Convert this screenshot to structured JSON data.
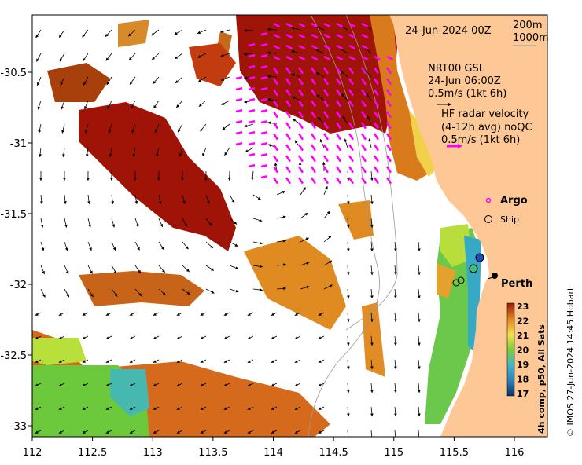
{
  "map": {
    "date_label": "24-Jun-2024 00Z",
    "isobath_200": "200m",
    "isobath_1000": "1000m",
    "model_label_line1": "NRT00 GSL",
    "model_label_line2": "24-Jun 06:00Z",
    "model_scale_label": "0.5m/s (1kt 6h)",
    "radar_label_line1": "HF radar velocity",
    "radar_label_line2": "(4-12h avg) noQC",
    "radar_scale_label": "0.5m/s (1kt 6h)",
    "argo_label": "Argo",
    "ship_label": "Ship",
    "city_label": "Perth",
    "colorbar_title": "4h comp, p50, All Sats",
    "credit": "© IMOS 27-Jun-2024 14:45 Hobart",
    "x_ticks": [
      "112",
      "112.5",
      "113",
      "113.5",
      "114",
      "114.5",
      "115",
      "115.5",
      "116"
    ],
    "y_ticks": [
      "-30.5",
      "-31",
      "-31.5",
      "-32",
      "-32.5",
      "-33"
    ],
    "colorbar_ticks": [
      "23",
      "22",
      "21",
      "20",
      "19",
      "18",
      "17"
    ],
    "colors": {
      "land": "#fdc896",
      "radar_arrows": "#ff00ff",
      "model_arrows": "#000000"
    }
  }
}
